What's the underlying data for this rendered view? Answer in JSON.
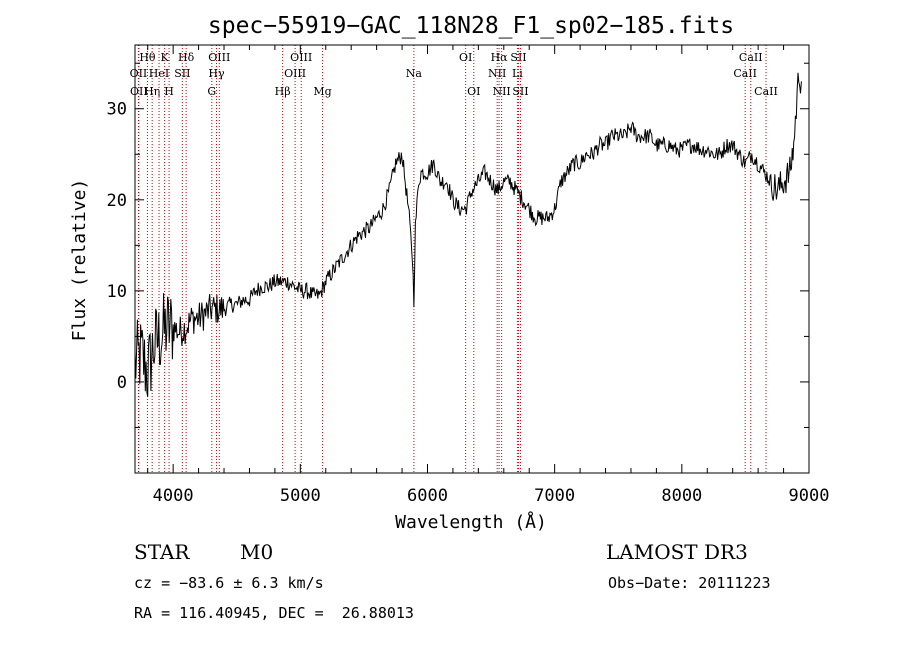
{
  "chart_data": {
    "type": "line",
    "title": "spec−55919−GAC_118N28_F1_sp02−185.fits",
    "xlabel": "Wavelength (Å)",
    "ylabel": "Flux (relative)",
    "xlim": [
      3700,
      9000
    ],
    "ylim": [
      -10,
      37
    ],
    "xticks": [
      {
        "value": 4000,
        "label": "4000"
      },
      {
        "value": 5000,
        "label": "5000"
      },
      {
        "value": 6000,
        "label": "6000"
      },
      {
        "value": 7000,
        "label": "7000"
      },
      {
        "value": 8000,
        "label": "8000"
      },
      {
        "value": 9000,
        "label": "9000"
      }
    ],
    "yticks": [
      {
        "value": 0,
        "label": "0"
      },
      {
        "value": 10,
        "label": "10"
      },
      {
        "value": 20,
        "label": "20"
      },
      {
        "value": 30,
        "label": "30"
      }
    ],
    "line_color": "#000000",
    "marker_color": "#cc0000",
    "spectrum": {
      "name": "flux",
      "x": [
        3700,
        3750,
        3800,
        3850,
        3900,
        3950,
        4000,
        4050,
        4100,
        4150,
        4200,
        4250,
        4300,
        4350,
        4400,
        4450,
        4500,
        4550,
        4600,
        4650,
        4700,
        4750,
        4800,
        4850,
        4900,
        4950,
        5000,
        5050,
        5100,
        5150,
        5200,
        5250,
        5300,
        5350,
        5400,
        5450,
        5500,
        5550,
        5600,
        5650,
        5700,
        5750,
        5800,
        5850,
        5880,
        5893,
        5905,
        5930,
        5950,
        6000,
        6050,
        6100,
        6150,
        6200,
        6250,
        6300,
        6350,
        6400,
        6450,
        6500,
        6550,
        6600,
        6650,
        6700,
        6750,
        6800,
        6850,
        6900,
        6950,
        7000,
        7050,
        7100,
        7150,
        7200,
        7250,
        7300,
        7350,
        7400,
        7450,
        7500,
        7550,
        7600,
        7650,
        7700,
        7750,
        7800,
        7850,
        7900,
        7950,
        8000,
        8050,
        8100,
        8150,
        8200,
        8250,
        8300,
        8350,
        8400,
        8450,
        8500,
        8550,
        8600,
        8650,
        8700,
        8750,
        8800,
        8850,
        8880,
        8900,
        8920,
        8940
      ],
      "y": [
        2,
        3,
        1,
        4,
        5,
        6,
        6,
        5.5,
        6,
        7,
        7,
        7.5,
        8,
        8,
        8,
        8.5,
        8.5,
        9,
        9,
        10,
        10.5,
        10.5,
        11,
        11,
        11,
        10.5,
        10,
        10,
        9.5,
        9.5,
        11,
        12,
        13,
        14,
        15,
        16,
        16.5,
        17,
        18,
        19,
        21,
        24,
        25,
        19,
        14,
        9,
        17,
        22,
        23,
        23,
        24,
        22,
        22,
        20,
        19,
        19,
        21,
        22,
        23,
        22,
        21,
        22,
        22,
        21,
        20,
        19,
        18,
        18,
        18,
        19,
        22,
        23,
        24,
        24,
        25,
        25,
        26,
        26,
        27,
        27,
        27,
        28,
        27,
        27,
        27,
        26,
        26,
        26,
        25.5,
        25.5,
        26,
        26,
        25.5,
        25.5,
        25,
        25,
        26,
        26,
        25,
        24,
        25,
        24,
        23,
        22,
        21,
        22,
        23,
        26,
        30,
        34,
        33
      ]
    },
    "line_markers": [
      {
        "wavelength": 3727,
        "rows": [
          {
            "label": "OII",
            "row": 2
          }
        ]
      },
      {
        "wavelength": 3730,
        "rows": [
          {
            "label": "OII",
            "row": 3
          }
        ]
      },
      {
        "wavelength": 3798,
        "rows": [
          {
            "label": "Hθ",
            "row": 1
          }
        ]
      },
      {
        "wavelength": 3835,
        "rows": [
          {
            "label": "Hη",
            "row": 3
          }
        ]
      },
      {
        "wavelength": 3889,
        "rows": [
          {
            "label": "HeI",
            "row": 2
          }
        ]
      },
      {
        "wavelength": 3933,
        "rows": [
          {
            "label": "K",
            "row": 1
          }
        ]
      },
      {
        "wavelength": 3968,
        "rows": [
          {
            "label": "H",
            "row": 3
          }
        ]
      },
      {
        "wavelength": 4072,
        "rows": [
          {
            "label": "SII",
            "row": 2
          }
        ]
      },
      {
        "wavelength": 4102,
        "rows": [
          {
            "label": "Hδ",
            "row": 1
          }
        ]
      },
      {
        "wavelength": 4304,
        "rows": [
          {
            "label": "G",
            "row": 3
          }
        ]
      },
      {
        "wavelength": 4341,
        "rows": [
          {
            "label": "Hγ",
            "row": 2
          }
        ]
      },
      {
        "wavelength": 4363,
        "rows": [
          {
            "label": "OIII",
            "row": 1
          }
        ]
      },
      {
        "wavelength": 4861,
        "rows": [
          {
            "label": "Hβ",
            "row": 3
          }
        ]
      },
      {
        "wavelength": 4959,
        "rows": [
          {
            "label": "OIII",
            "row": 2
          }
        ]
      },
      {
        "wavelength": 5007,
        "rows": [
          {
            "label": "OIII",
            "row": 1
          }
        ]
      },
      {
        "wavelength": 5175,
        "rows": [
          {
            "label": "Mg",
            "row": 3
          }
        ]
      },
      {
        "wavelength": 5893,
        "rows": [
          {
            "label": "Na",
            "row": 2
          }
        ]
      },
      {
        "wavelength": 6300,
        "rows": [
          {
            "label": "OI",
            "row": 1
          }
        ]
      },
      {
        "wavelength": 6364,
        "rows": [
          {
            "label": "OI",
            "row": 3
          }
        ]
      },
      {
        "wavelength": 6548,
        "rows": [
          {
            "label": "NII",
            "row": 2
          }
        ]
      },
      {
        "wavelength": 6563,
        "rows": [
          {
            "label": "Hα",
            "row": 1
          }
        ]
      },
      {
        "wavelength": 6583,
        "rows": [
          {
            "label": "NII",
            "row": 3
          }
        ]
      },
      {
        "wavelength": 6707,
        "rows": [
          {
            "label": "Li",
            "row": 2
          }
        ]
      },
      {
        "wavelength": 6716,
        "rows": [
          {
            "label": "SII",
            "row": 1
          }
        ]
      },
      {
        "wavelength": 6731,
        "rows": [
          {
            "label": "SII",
            "row": 3
          }
        ]
      },
      {
        "wavelength": 8498,
        "rows": [
          {
            "label": "CaII",
            "row": 2
          }
        ]
      },
      {
        "wavelength": 8542,
        "rows": [
          {
            "label": "CaII",
            "row": 1
          }
        ]
      },
      {
        "wavelength": 8662,
        "rows": [
          {
            "label": "CaII",
            "row": 3
          }
        ]
      }
    ]
  },
  "info": {
    "class": "STAR",
    "subclass": "M0",
    "survey": "LAMOST DR3",
    "redshift": "cz = −83.6 ± 6.3 km/s",
    "obs_date": "Obs−Date: 20111223",
    "coords": "RA = 116.40945, DEC =  26.88013"
  }
}
